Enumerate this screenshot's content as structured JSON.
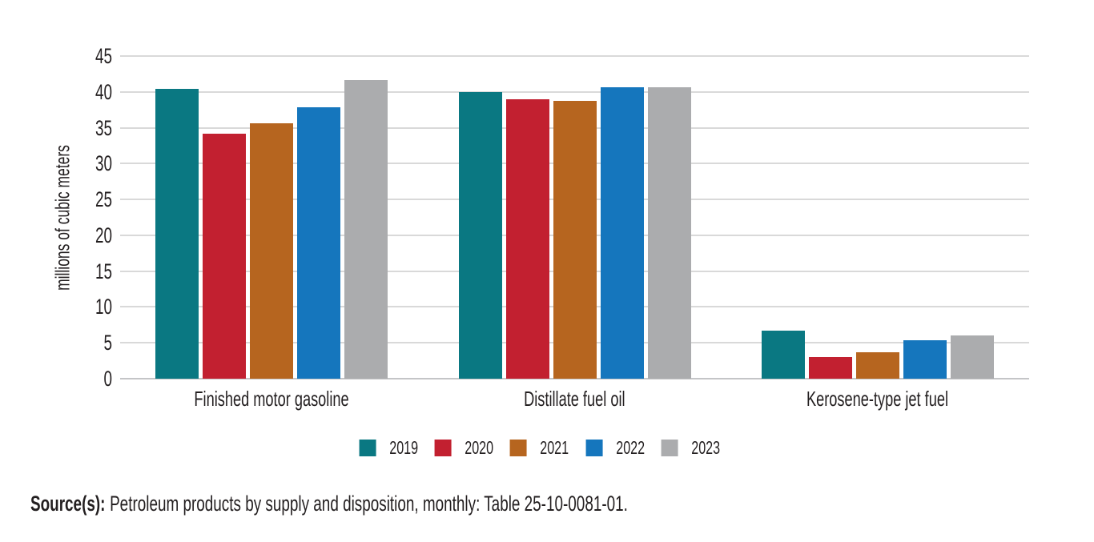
{
  "chart_data": {
    "type": "bar",
    "categories": [
      "Finished motor gasoline",
      "Distillate fuel oil",
      "Kerosene-type jet fuel"
    ],
    "series": [
      {
        "name": "2019",
        "color": "#0a7882",
        "values": [
          40.4,
          40.0,
          6.7
        ]
      },
      {
        "name": "2020",
        "color": "#c22030",
        "values": [
          34.2,
          39.0,
          3.0
        ]
      },
      {
        "name": "2021",
        "color": "#b6651f",
        "values": [
          35.6,
          38.7,
          3.7
        ]
      },
      {
        "name": "2022",
        "color": "#1576bd",
        "values": [
          37.9,
          40.6,
          5.4
        ]
      },
      {
        "name": "2023",
        "color": "#abacae",
        "values": [
          41.7,
          40.7,
          6.0
        ]
      }
    ],
    "title": "",
    "xlabel": "",
    "ylabel": "millions of cubic meters",
    "ylim": [
      0,
      45
    ],
    "ytick_step": 5,
    "yticks": [
      "0",
      "5",
      "10",
      "15",
      "20",
      "25",
      "30",
      "35",
      "40",
      "45"
    ],
    "grid": true,
    "legend_position": "bottom",
    "colors": {
      "gridline": "#d9d9d9",
      "baseline": "#c4c5c7",
      "text": "#231f20",
      "background": "#ffffff"
    }
  },
  "source": {
    "label": "Source(s):",
    "text": "Petroleum products by supply and disposition, monthly: Table 25-10-0081-01."
  }
}
